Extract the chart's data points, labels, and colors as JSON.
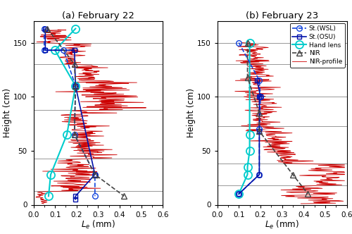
{
  "title_a": "(a) February 22",
  "title_b": "(b) February 23",
  "xlabel": "$L_e$ (mm)",
  "ylabel": "Height (cm)",
  "xlim": [
    0,
    0.6
  ],
  "ylim": [
    0,
    170
  ],
  "xticks": [
    0,
    0.1,
    0.2,
    0.3,
    0.4,
    0.5,
    0.6
  ],
  "yticks": [
    0,
    50,
    100,
    150
  ],
  "hlines_a": [
    13,
    43,
    88,
    130,
    150
  ],
  "hlines_b": [
    18,
    38,
    73,
    100,
    130,
    150
  ],
  "wsl_a_x": [
    0.05,
    0.05,
    0.14,
    0.195,
    0.19,
    0.285,
    0.285
  ],
  "wsl_a_y": [
    163,
    143,
    143,
    110,
    65,
    28,
    8
  ],
  "osu_a_x": [
    0.055,
    0.055,
    0.19,
    0.195,
    0.285,
    0.195,
    0.195
  ],
  "osu_a_y": [
    163,
    143,
    143,
    110,
    28,
    8,
    5
  ],
  "hl_a_x": [
    0.195,
    0.1,
    0.195,
    0.155,
    0.08,
    0.07
  ],
  "hl_a_y": [
    163,
    143,
    110,
    65,
    28,
    8
  ],
  "nir_a_x": [
    0.065,
    0.19,
    0.195,
    0.19,
    0.285,
    0.42
  ],
  "nir_a_y": [
    163,
    130,
    110,
    65,
    28,
    8
  ],
  "wsl_b_x": [
    0.1,
    0.195,
    0.2,
    0.195,
    0.195,
    0.1
  ],
  "wsl_b_y": [
    150,
    115,
    100,
    70,
    28,
    10
  ],
  "osu_b_x": [
    0.185,
    0.2,
    0.195,
    0.195,
    0.195,
    0.1
  ],
  "osu_b_y": [
    115,
    100,
    100,
    68,
    28,
    10
  ],
  "hl_b_x": [
    0.15,
    0.15,
    0.15,
    0.14,
    0.14,
    0.1
  ],
  "hl_b_y": [
    150,
    65,
    50,
    35,
    28,
    10
  ],
  "nir_b_x": [
    0.14,
    0.14,
    0.195,
    0.195,
    0.35,
    0.42
  ],
  "nir_b_y": [
    150,
    118,
    85,
    68,
    28,
    10
  ],
  "color_wsl": "#1144dd",
  "color_osu": "#0011aa",
  "color_hl": "#00cccc",
  "color_nir": "#444444",
  "color_nirp": "#cc0000",
  "legend_labels": [
    "St.(WSL)",
    "St.(OSU)",
    "Hand lens",
    "NIR",
    "NIR-profile"
  ]
}
